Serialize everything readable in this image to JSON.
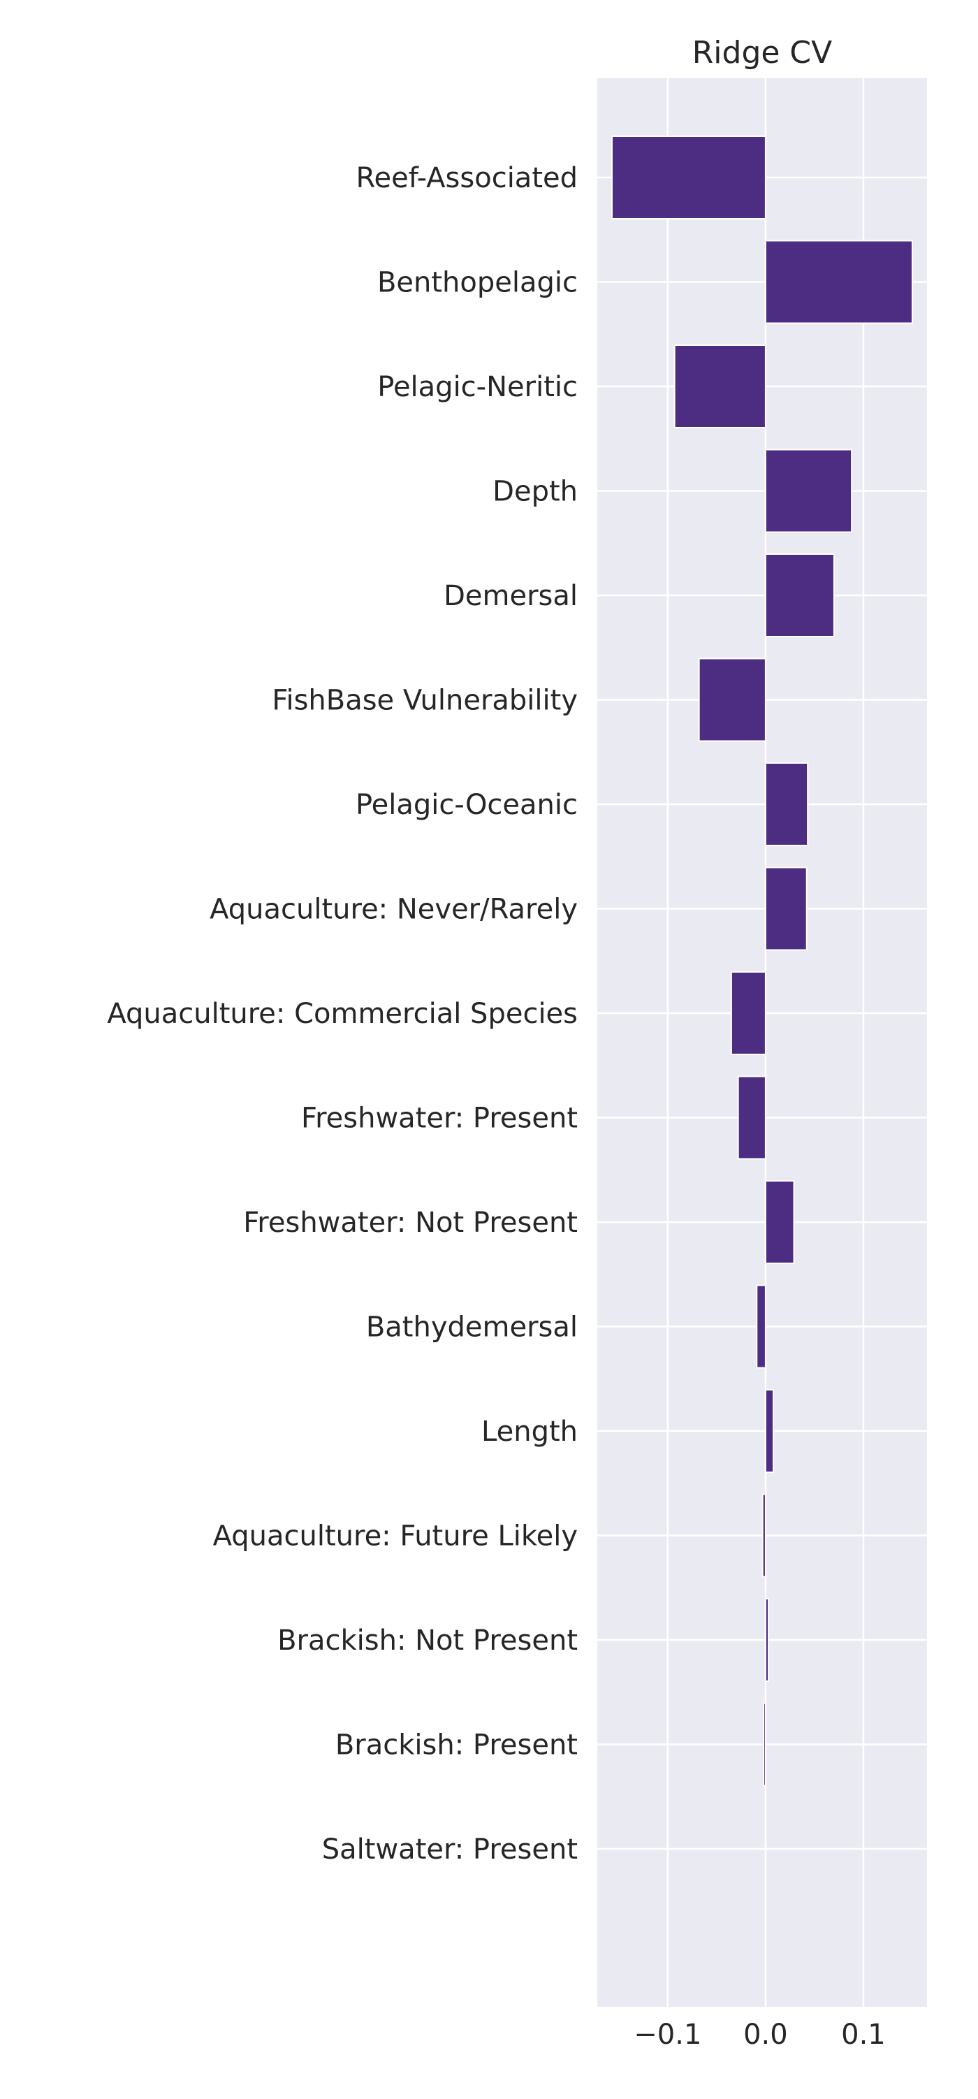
{
  "chart_data": {
    "type": "bar",
    "orientation": "horizontal",
    "title": "Ridge CV",
    "xlabel": "",
    "ylabel": "",
    "xlim": [
      -0.172,
      0.165
    ],
    "xticks": [
      -0.1,
      0.0,
      0.1
    ],
    "xtick_labels": [
      "−0.1",
      "0.0",
      "0.1"
    ],
    "grid": true,
    "background_color": "#eaeaf2",
    "bar_color": "#4c2d82",
    "grid_color": "#ffffff",
    "categories": [
      "Reef-Associated",
      "Benthopelagic",
      "Pelagic-Neritic",
      "Depth",
      "Demersal",
      "FishBase Vulnerability",
      "Pelagic-Oceanic",
      "Aquaculture: Never/Rarely",
      "Aquaculture: Commercial Species",
      "Freshwater: Present",
      "Freshwater: Not Present",
      "Bathydemersal",
      "Length",
      "Aquaculture: Future Likely",
      "Brackish: Not Present",
      "Brackish: Present",
      "Saltwater: Present"
    ],
    "values": [
      -0.157,
      0.15,
      -0.093,
      0.088,
      0.07,
      -0.068,
      0.043,
      0.042,
      -0.035,
      -0.028,
      0.029,
      -0.009,
      0.008,
      -0.003,
      0.003,
      -0.002,
      0.0
    ]
  }
}
